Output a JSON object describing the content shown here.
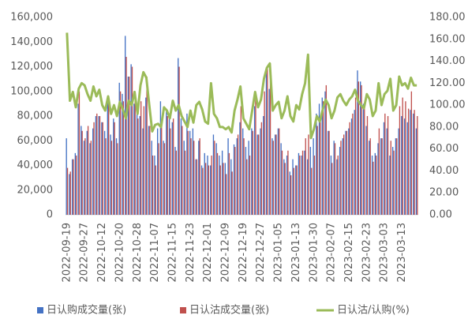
{
  "chart_data": {
    "type": "bar",
    "categories": [
      "2022-09-19",
      null,
      null,
      null,
      null,
      null,
      "2022-09-27",
      null,
      null,
      null,
      null,
      null,
      "2022-10-12",
      null,
      null,
      null,
      null,
      null,
      "2022-10-20",
      null,
      null,
      null,
      null,
      null,
      "2022-10-28",
      null,
      null,
      null,
      null,
      null,
      "2022-11-07",
      null,
      null,
      null,
      null,
      null,
      "2022-11-15",
      null,
      null,
      null,
      null,
      null,
      "2022-11-23",
      null,
      null,
      null,
      null,
      null,
      "2022-12-01",
      null,
      null,
      null,
      null,
      null,
      "2022-12-09",
      null,
      null,
      null,
      null,
      null,
      "2022-12-19",
      null,
      null,
      null,
      null,
      null,
      "2022-12-27",
      null,
      null,
      null,
      null,
      null,
      "2023-01-05",
      null,
      null,
      null,
      null,
      null,
      "2023-01-13",
      null,
      null,
      null,
      null,
      null,
      "2023-01-30",
      null,
      null,
      null,
      null,
      null,
      "2023-02-07",
      null,
      null,
      null,
      null,
      null,
      "2023-02-15",
      null,
      null,
      null,
      null,
      null,
      "2023-02-23",
      null,
      null,
      null,
      null,
      null,
      "2023-03-03",
      null,
      null,
      null,
      null,
      null,
      "2023-03-13",
      null,
      null,
      null,
      null,
      null
    ],
    "series": [
      {
        "name": "日认购成交量(张)",
        "color": "#4472c4",
        "values": [
          62000,
          33000,
          45000,
          50000,
          90000,
          72000,
          60000,
          68000,
          58000,
          70000,
          80000,
          80000,
          75000,
          68000,
          92000,
          65000,
          78000,
          62000,
          107000,
          98000,
          145000,
          112000,
          122000,
          90000,
          82000,
          80000,
          70000,
          95000,
          72000,
          60000,
          48000,
          70000,
          92000,
          60000,
          85000,
          80000,
          75000,
          55000,
          127000,
          78000,
          60000,
          82000,
          68000,
          70000,
          45000,
          60000,
          40000,
          50000,
          48000,
          40000,
          65000,
          58000,
          48000,
          52000,
          42000,
          62000,
          45000,
          57000,
          62000,
          75000,
          70000,
          55000,
          60000,
          70000,
          88000,
          65000,
          70000,
          80000,
          115000,
          102000,
          62000,
          65000,
          70000,
          58000,
          45000,
          48000,
          35000,
          45000,
          40000,
          50000,
          48000,
          52000,
          45000,
          55000,
          62000,
          82000,
          90000,
          95000,
          100000,
          68000,
          48000,
          60000,
          45000,
          55000,
          62000,
          68000,
          70000,
          78000,
          85000,
          117000,
          108000,
          90000,
          72000,
          60000,
          48000,
          50000,
          58000,
          62000,
          75000,
          70000,
          48000,
          55000,
          62000,
          70000,
          80000,
          78000,
          75000,
          85000,
          82000,
          70000
        ]
      },
      {
        "name": "日认沽成交量(张)",
        "color": "#c0504d",
        "values": [
          38000,
          35000,
          45000,
          48000,
          100000,
          68000,
          62000,
          72000,
          60000,
          75000,
          82000,
          80000,
          75000,
          62000,
          92000,
          60000,
          75000,
          58000,
          100000,
          92000,
          128000,
          112000,
          120000,
          100000,
          78000,
          92000,
          88000,
          112000,
          72000,
          48000,
          40000,
          58000,
          72000,
          58000,
          80000,
          70000,
          78000,
          52000,
          120000,
          72000,
          52000,
          68000,
          62000,
          60000,
          45000,
          62000,
          38000,
          42000,
          40000,
          48000,
          60000,
          50000,
          40000,
          42000,
          33000,
          50000,
          35000,
          55000,
          65000,
          88000,
          62000,
          45000,
          48000,
          68000,
          98000,
          65000,
          75000,
          100000,
          120000,
          108000,
          60000,
          65000,
          70000,
          52000,
          42000,
          52000,
          32000,
          38000,
          40000,
          48000,
          52000,
          62000,
          65000,
          38000,
          48000,
          72000,
          75000,
          92000,
          105000,
          68000,
          42000,
          58000,
          48000,
          60000,
          65000,
          68000,
          75000,
          82000,
          95000,
          108000,
          105000,
          88000,
          80000,
          62000,
          43000,
          48000,
          70000,
          62000,
          82000,
          80000,
          60000,
          52000,
          62000,
          88000,
          95000,
          92000,
          86000,
          100000,
          85000,
          80000
        ]
      },
      {
        "name": "日认沽/认购(%)",
        "color": "#9bbb59",
        "axis": "y2",
        "values": [
          166,
          104,
          112,
          98,
          115,
          120,
          118,
          110,
          104,
          117,
          108,
          114,
          100,
          95,
          108,
          92,
          100,
          90,
          103,
          96,
          88,
          104,
          100,
          112,
          92,
          118,
          130,
          125,
          100,
          76,
          82,
          83,
          80,
          98,
          95,
          88,
          104,
          95,
          100,
          90,
          85,
          80,
          95,
          84,
          100,
          103,
          96,
          85,
          83,
          120,
          92,
          88,
          80,
          80,
          78,
          80,
          75,
          95,
          105,
          117,
          88,
          83,
          78,
          95,
          112,
          98,
          105,
          124,
          134,
          138,
          95,
          100,
          103,
          88,
          95,
          108,
          90,
          85,
          100,
          96,
          110,
          120,
          146,
          70,
          78,
          90,
          85,
          96,
          105,
          100,
          88,
          95,
          107,
          110,
          104,
          100,
          105,
          108,
          114,
          104,
          100,
          97,
          110,
          105,
          90,
          95,
          120,
          100,
          110,
          113,
          124,
          95,
          100,
          126,
          118,
          120,
          115,
          125,
          118,
          118
        ]
      }
    ],
    "ylim": [
      0,
      160000
    ],
    "yticks": [
      0,
      {
        "value": 20000,
        "label": "20,000"
      },
      {
        "value": 40000,
        "label": "40,000"
      },
      {
        "value": 60000,
        "label": "60,000"
      },
      {
        "value": 80000,
        "label": "80,000"
      },
      {
        "value": 100000,
        "label": "100,000"
      },
      {
        "value": 120000,
        "label": "120,000"
      },
      {
        "value": 140000,
        "label": "140,000"
      },
      {
        "value": 160000,
        "label": "160,000"
      }
    ],
    "y2lim": [
      0,
      180
    ],
    "y2ticks": [
      {
        "value": 0,
        "label": "0.00"
      },
      {
        "value": 20,
        "label": "20.00"
      },
      {
        "value": 40,
        "label": "40.00"
      },
      {
        "value": 60,
        "label": "60.00"
      },
      {
        "value": 80,
        "label": "80.00"
      },
      {
        "value": 100,
        "label": "100.00"
      },
      {
        "value": 120,
        "label": "120.00"
      },
      {
        "value": 140,
        "label": "140.00"
      },
      {
        "value": 160,
        "label": "160.00"
      },
      {
        "value": 180,
        "label": "180.00"
      }
    ],
    "legend": "bottom"
  }
}
